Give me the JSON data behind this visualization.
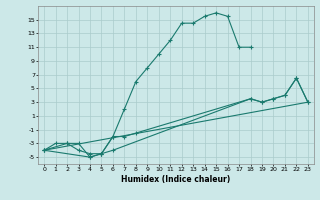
{
  "xlabel": "Humidex (Indice chaleur)",
  "bg_color": "#cce8e8",
  "grid_color": "#aacccc",
  "line_color": "#1a7a6e",
  "xlim": [
    -0.5,
    23.5
  ],
  "ylim": [
    -6,
    17
  ],
  "xticks": [
    0,
    1,
    2,
    3,
    4,
    5,
    6,
    7,
    8,
    9,
    10,
    11,
    12,
    13,
    14,
    15,
    16,
    17,
    18,
    19,
    20,
    21,
    22,
    23
  ],
  "yticks": [
    -5,
    -3,
    -1,
    1,
    3,
    5,
    7,
    9,
    11,
    13,
    15
  ],
  "line1": {
    "x": [
      0,
      1,
      2,
      3,
      4,
      5,
      6,
      7,
      8,
      9,
      10,
      11,
      12,
      13,
      14,
      15,
      16,
      17,
      18
    ],
    "y": [
      -4,
      -3,
      -3,
      -3,
      -5,
      -4.5,
      -2,
      2,
      6,
      8,
      10,
      12,
      14.5,
      14.5,
      15.5,
      16,
      15.5,
      11,
      11
    ]
  },
  "line2": {
    "x": [
      0,
      2,
      3,
      4,
      5,
      6,
      7,
      8,
      18,
      19,
      20,
      21,
      22,
      23
    ],
    "y": [
      -4,
      -3,
      -4,
      -4.5,
      -4.5,
      -2,
      -2,
      -1.5,
      3.5,
      3,
      3.5,
      4,
      6.5,
      3
    ]
  },
  "line3": {
    "x": [
      0,
      23
    ],
    "y": [
      -4,
      3
    ]
  },
  "line4": {
    "x": [
      0,
      4,
      5,
      6,
      18,
      19,
      20,
      21,
      22,
      23
    ],
    "y": [
      -4,
      -5,
      -4.5,
      -4,
      3.5,
      3,
      3.5,
      4,
      6.5,
      3
    ]
  }
}
